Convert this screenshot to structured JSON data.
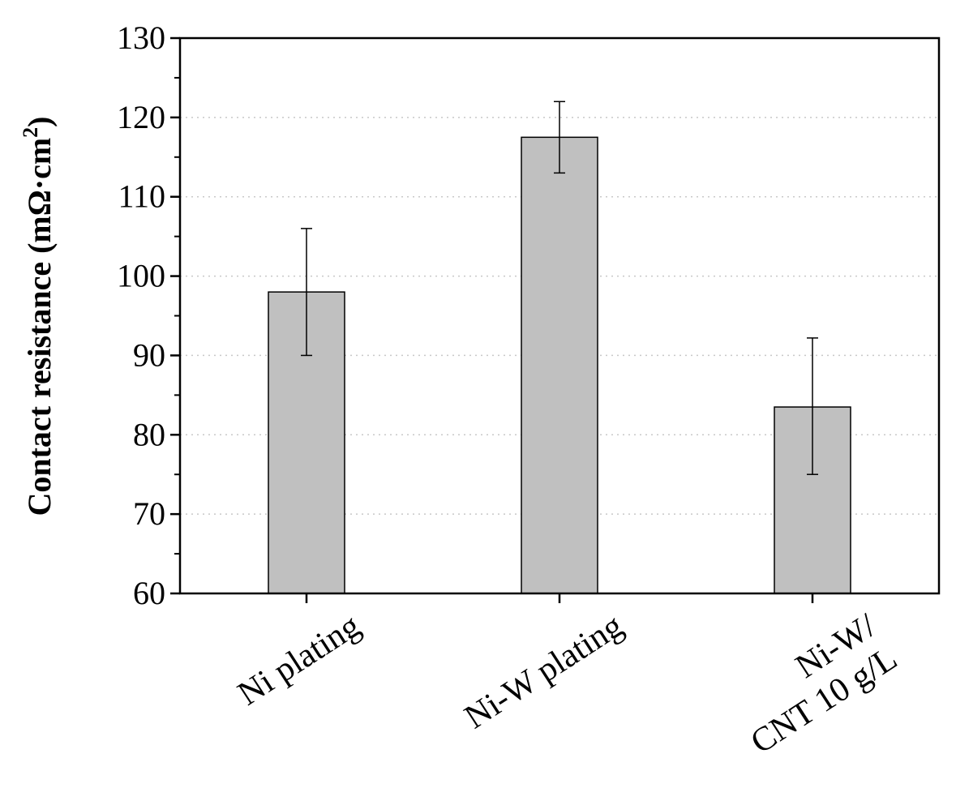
{
  "chart_data": {
    "type": "bar",
    "categories": [
      [
        "Ni plating"
      ],
      [
        "Ni-W plating"
      ],
      [
        "Ni-W/",
        "CNT 10 g/L"
      ]
    ],
    "values": [
      98,
      117.5,
      83.5
    ],
    "error_low": [
      90,
      113,
      75
    ],
    "error_high": [
      106,
      122,
      92.2
    ],
    "ylabel": "Contact resistance (mΩ·cm",
    "ylabel_superscript": "2",
    "ylabel_close": ")",
    "ylim": [
      60,
      130
    ],
    "yticks": [
      60,
      70,
      80,
      90,
      100,
      110,
      120,
      130
    ],
    "ytick_labels": [
      "60",
      "70",
      "80",
      "90",
      "100",
      "110",
      "120",
      "130"
    ],
    "grid": true,
    "bar_color": "#c0c0c0",
    "bar_edge_color": "#000000"
  }
}
